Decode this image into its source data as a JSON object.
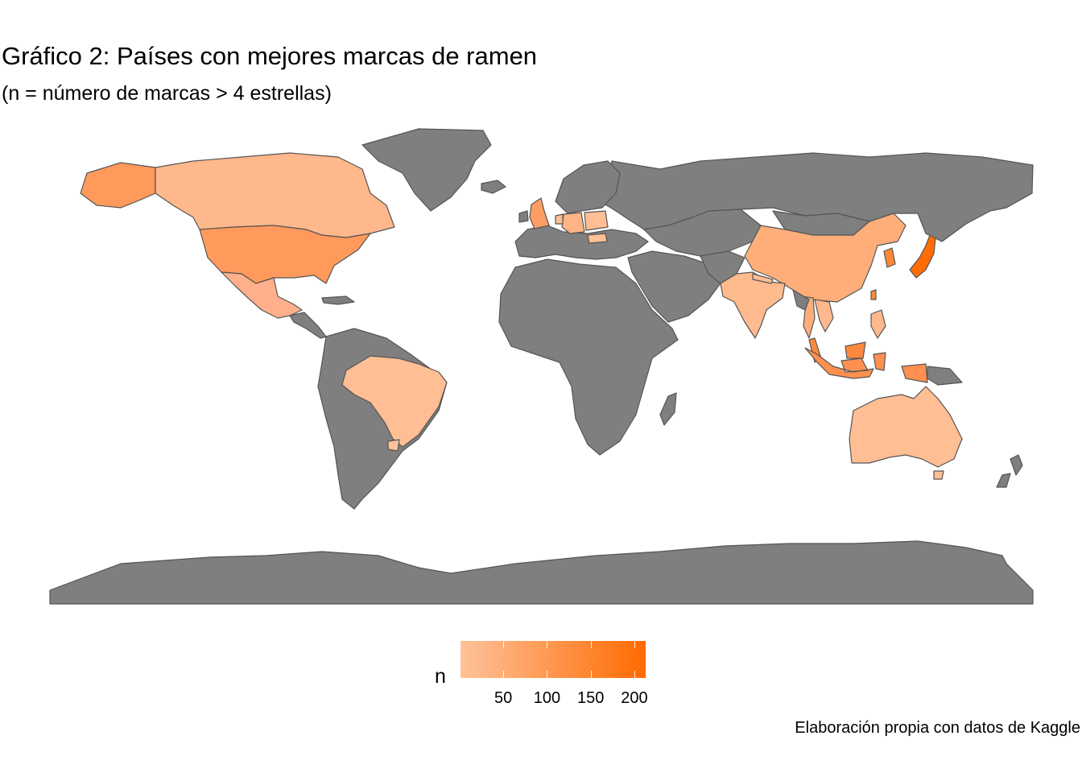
{
  "title": "Gráfico 2: Países con mejores marcas de ramen",
  "subtitle": "(n = número de marcas > 4 estrellas)",
  "caption": "Elaboración propia con datos de Kaggle",
  "colors": {
    "land_no_data": "#7F7F7F",
    "border": "#555555",
    "scale_low": "#FFC29A",
    "scale_high": "#FF6A00"
  },
  "legend": {
    "title": "n",
    "ticks": [
      {
        "value": 50,
        "label": "50"
      },
      {
        "value": 100,
        "label": "100"
      },
      {
        "value": 150,
        "label": "150"
      },
      {
        "value": 200,
        "label": "200"
      }
    ],
    "range": [
      1,
      213
    ]
  },
  "chart_data": {
    "type": "choropleth",
    "title": "Gráfico 2: Países con mejores marcas de ramen",
    "subtitle": "(n = número de marcas > 4 estrellas)",
    "legend_title": "n",
    "scale": {
      "min": 1,
      "max": 213,
      "low_color": "#FFC29A",
      "high_color": "#FF6A00"
    },
    "regions": [
      {
        "region": "Japan",
        "value": 210
      },
      {
        "region": "South Korea",
        "value": 150
      },
      {
        "region": "USA",
        "value": 110
      },
      {
        "region": "Alaska (USA)",
        "value": 110
      },
      {
        "region": "Taiwan",
        "value": 120
      },
      {
        "region": "Malaysia",
        "value": 120
      },
      {
        "region": "Indonesia",
        "value": 100
      },
      {
        "region": "China",
        "value": 75
      },
      {
        "region": "Thailand",
        "value": 75
      },
      {
        "region": "Singapore",
        "value": 100
      },
      {
        "region": "Vietnam",
        "value": 30
      },
      {
        "region": "Philippines",
        "value": 30
      },
      {
        "region": "India",
        "value": 20
      },
      {
        "region": "Nepal",
        "value": 15
      },
      {
        "region": "Mexico",
        "value": 35
      },
      {
        "region": "Canada",
        "value": 20
      },
      {
        "region": "Brazil",
        "value": 10
      },
      {
        "region": "Australia",
        "value": 15
      },
      {
        "region": "Germany",
        "value": 20
      },
      {
        "region": "Poland",
        "value": 12
      },
      {
        "region": "UK",
        "value": 60
      },
      {
        "region": "Netherlands",
        "value": 15
      },
      {
        "region": "Hungary",
        "value": 8
      },
      {
        "region": "Papua New Guinea",
        "value": 25
      },
      {
        "region": "Uruguay",
        "value": 5
      }
    ]
  }
}
